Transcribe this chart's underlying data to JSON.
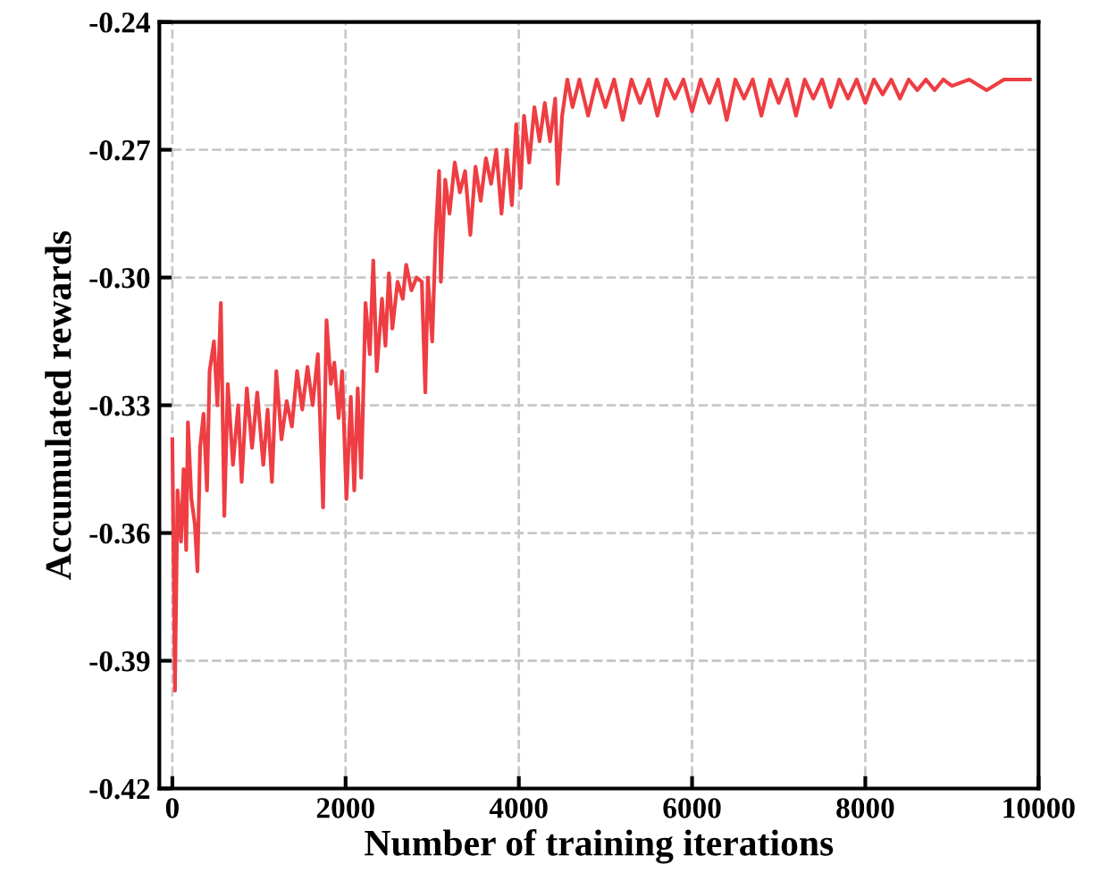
{
  "chart_data": {
    "type": "line",
    "xlabel": "Number of training iterations",
    "ylabel": "Accumulated rewards",
    "xlim": [
      -150,
      10000
    ],
    "ylim": [
      -0.42,
      -0.24
    ],
    "xticks": [
      0,
      2000,
      4000,
      6000,
      8000,
      10000
    ],
    "yticks": [
      {
        "value": -0.42,
        "label": "-0.42"
      },
      {
        "value": -0.39,
        "label": "-0.39"
      },
      {
        "value": -0.36,
        "label": "-0.36"
      },
      {
        "value": -0.33,
        "label": "-0.33"
      },
      {
        "value": -0.3,
        "label": "-0.30"
      },
      {
        "value": -0.27,
        "label": "-0.27"
      },
      {
        "value": -0.24,
        "label": "-0.24"
      }
    ],
    "grid": true,
    "line_style": "solid",
    "marker": "none",
    "series": [
      {
        "color": "#ee3e43",
        "x": [
          0,
          30,
          60,
          100,
          130,
          160,
          180,
          220,
          260,
          290,
          320,
          360,
          400,
          430,
          480,
          520,
          560,
          600,
          640,
          700,
          760,
          800,
          860,
          920,
          980,
          1050,
          1100,
          1150,
          1200,
          1260,
          1320,
          1380,
          1440,
          1500,
          1560,
          1620,
          1680,
          1740,
          1780,
          1830,
          1870,
          1920,
          1960,
          2010,
          2060,
          2100,
          2140,
          2180,
          2230,
          2280,
          2320,
          2360,
          2420,
          2460,
          2500,
          2540,
          2600,
          2660,
          2700,
          2760,
          2820,
          2880,
          2920,
          2950,
          3000,
          3040,
          3080,
          3100,
          3150,
          3200,
          3260,
          3320,
          3380,
          3440,
          3500,
          3560,
          3620,
          3680,
          3740,
          3800,
          3860,
          3920,
          3970,
          4020,
          4060,
          4120,
          4180,
          4240,
          4300,
          4360,
          4420,
          4450,
          4500,
          4560,
          4620,
          4700,
          4800,
          4900,
          5000,
          5100,
          5200,
          5300,
          5400,
          5500,
          5600,
          5700,
          5800,
          5900,
          6000,
          6100,
          6200,
          6300,
          6400,
          6500,
          6600,
          6700,
          6800,
          6900,
          7000,
          7100,
          7200,
          7300,
          7400,
          7500,
          7600,
          7700,
          7800,
          7900,
          8000,
          8100,
          8200,
          8300,
          8400,
          8500,
          8600,
          8700,
          8800,
          8900,
          9000,
          9200,
          9400,
          9600,
          9800,
          9900
        ],
        "values": [
          -0.338,
          -0.397,
          -0.35,
          -0.362,
          -0.345,
          -0.364,
          -0.334,
          -0.352,
          -0.358,
          -0.369,
          -0.34,
          -0.332,
          -0.35,
          -0.322,
          -0.315,
          -0.33,
          -0.306,
          -0.356,
          -0.325,
          -0.344,
          -0.33,
          -0.348,
          -0.326,
          -0.34,
          -0.327,
          -0.344,
          -0.331,
          -0.348,
          -0.322,
          -0.338,
          -0.329,
          -0.335,
          -0.322,
          -0.331,
          -0.321,
          -0.33,
          -0.318,
          -0.354,
          -0.31,
          -0.325,
          -0.32,
          -0.333,
          -0.322,
          -0.352,
          -0.328,
          -0.35,
          -0.326,
          -0.347,
          -0.306,
          -0.318,
          -0.296,
          -0.322,
          -0.305,
          -0.316,
          -0.299,
          -0.312,
          -0.301,
          -0.305,
          -0.297,
          -0.303,
          -0.3,
          -0.301,
          -0.327,
          -0.3,
          -0.315,
          -0.29,
          -0.275,
          -0.301,
          -0.277,
          -0.285,
          -0.273,
          -0.28,
          -0.275,
          -0.29,
          -0.274,
          -0.282,
          -0.272,
          -0.278,
          -0.27,
          -0.285,
          -0.27,
          -0.283,
          -0.264,
          -0.279,
          -0.262,
          -0.273,
          -0.26,
          -0.268,
          -0.259,
          -0.268,
          -0.258,
          -0.278,
          -0.262,
          -0.2535,
          -0.26,
          -0.2535,
          -0.262,
          -0.2535,
          -0.26,
          -0.2535,
          -0.263,
          -0.2535,
          -0.259,
          -0.2535,
          -0.262,
          -0.2535,
          -0.258,
          -0.2535,
          -0.261,
          -0.2535,
          -0.259,
          -0.2535,
          -0.263,
          -0.2535,
          -0.258,
          -0.2535,
          -0.262,
          -0.2535,
          -0.259,
          -0.2535,
          -0.262,
          -0.2535,
          -0.258,
          -0.2535,
          -0.26,
          -0.2535,
          -0.258,
          -0.2535,
          -0.259,
          -0.2535,
          -0.257,
          -0.2535,
          -0.258,
          -0.2535,
          -0.256,
          -0.2535,
          -0.256,
          -0.2535,
          -0.255,
          -0.2535,
          -0.256,
          -0.2535,
          -0.2535,
          -0.2535
        ]
      }
    ]
  }
}
